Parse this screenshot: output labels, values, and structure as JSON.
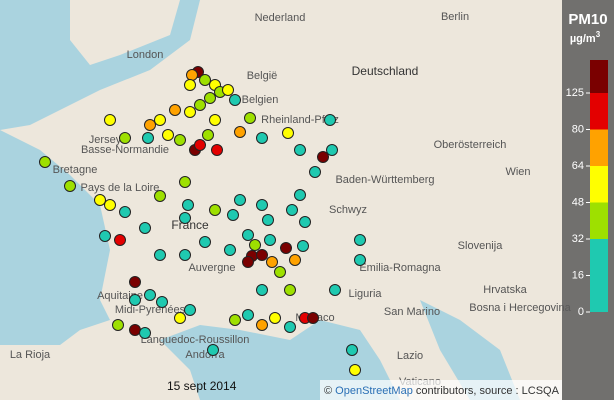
{
  "map": {
    "labels": [
      "London",
      "Nederland",
      "België",
      "Belgien",
      "Deutschland",
      "Berlin",
      "Bretagne",
      "Jersey",
      "Basse-Normandie",
      "Pays de la Loire",
      "France",
      "Aquitaine",
      "Auvergne",
      "Midi-Pyrénées",
      "Languedoc-Roussillon",
      "Andorra",
      "La Rioja",
      "Baden-Württemberg",
      "Wien",
      "Slovenija",
      "Hrvatska",
      "Bosna i Hercegovina",
      "San Marino",
      "Liguria",
      "Monaco",
      "Lazio",
      "Vaticano",
      "Rheinland-Pfalz",
      "Oberösterreich",
      "Schwyz",
      "Emilia-Romagna"
    ],
    "date": "15 sept 2014",
    "attribution": {
      "link": "OpenStreetMap",
      "text": "contributors, source : LCSQA",
      "symbol": "©"
    }
  },
  "legend": {
    "title": "PM10",
    "unit": "µg/m",
    "unit_sup": "3",
    "ticks": [
      0,
      16,
      32,
      48,
      64,
      80,
      125
    ],
    "colors": [
      "#1fc9b0",
      "#1fc9b0",
      "#9ee000",
      "#ffff00",
      "#ffa200",
      "#e30000",
      "#7a0000"
    ]
  }
}
